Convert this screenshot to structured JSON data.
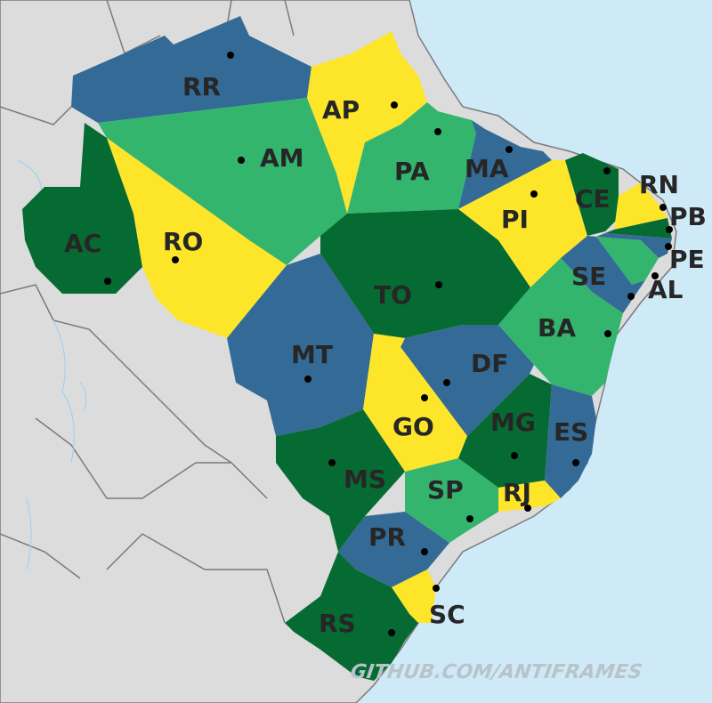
{
  "map": {
    "colors": {
      "ocean": "#cfeaf7",
      "land": "#dcdcdc",
      "dark_green": "#066b32",
      "light_green": "#34b56e",
      "yellow": "#fde52a",
      "blue": "#336b96",
      "label": "#262626",
      "watermark": "#b9c3cc"
    },
    "states": [
      {
        "code": "RR",
        "color": "blue"
      },
      {
        "code": "AP",
        "color": "yellow"
      },
      {
        "code": "AM",
        "color": "light_green"
      },
      {
        "code": "PA",
        "color": "light_green"
      },
      {
        "code": "MA",
        "color": "blue"
      },
      {
        "code": "CE",
        "color": "dark_green"
      },
      {
        "code": "RN",
        "color": "yellow"
      },
      {
        "code": "PB",
        "color": "dark_green"
      },
      {
        "code": "PE",
        "color": "blue"
      },
      {
        "code": "AL",
        "color": "light_green"
      },
      {
        "code": "SE",
        "color": "blue"
      },
      {
        "code": "PI",
        "color": "yellow"
      },
      {
        "code": "AC",
        "color": "dark_green"
      },
      {
        "code": "RO",
        "color": "yellow"
      },
      {
        "code": "TO",
        "color": "dark_green"
      },
      {
        "code": "MT",
        "color": "blue"
      },
      {
        "code": "BA",
        "color": "light_green"
      },
      {
        "code": "DF",
        "color": "blue"
      },
      {
        "code": "GO",
        "color": "yellow"
      },
      {
        "code": "MG",
        "color": "dark_green"
      },
      {
        "code": "ES",
        "color": "blue"
      },
      {
        "code": "MS",
        "color": "dark_green"
      },
      {
        "code": "SP",
        "color": "light_green"
      },
      {
        "code": "RJ",
        "color": "yellow"
      },
      {
        "code": "PR",
        "color": "blue"
      },
      {
        "code": "SC",
        "color": "yellow"
      },
      {
        "code": "RS",
        "color": "dark_green"
      }
    ],
    "watermark": "GITHUB.COM/ANTIFRAMES"
  }
}
